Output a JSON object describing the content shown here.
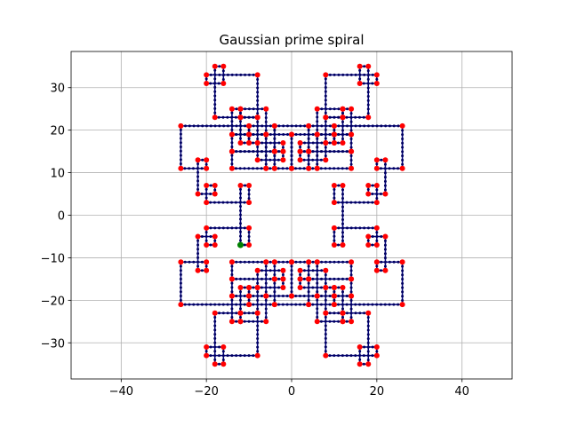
{
  "chart_data": {
    "type": "line",
    "title": "Gaussian prime spiral",
    "x": [
      -12,
      -10,
      -10,
      -20,
      -20,
      -18,
      -18,
      -22,
      -22,
      -20,
      -20,
      -26,
      -26,
      -10,
      -10,
      -14,
      -14,
      -12,
      -12,
      -18,
      -18,
      -16,
      -16,
      -20,
      -20,
      -8,
      -8,
      -12,
      -12,
      -6,
      -6,
      -10,
      -10,
      -4,
      -4,
      -14,
      -14,
      -10,
      -10,
      -12,
      -12,
      -8,
      -8,
      -10,
      -10,
      -6,
      -6,
      -14,
      -14,
      -4,
      -4,
      -6,
      -6,
      0,
      0,
      -4,
      -4,
      -2,
      -2,
      -8,
      -8,
      -2,
      -2,
      -4,
      -4,
      4,
      4,
      2,
      2,
      8,
      8,
      2,
      2,
      4,
      4,
      0,
      0,
      6,
      6,
      4,
      4,
      14,
      14,
      6,
      6,
      10,
      10,
      8,
      8,
      12,
      12,
      10,
      10,
      14,
      14,
      4,
      4,
      10,
      10,
      6,
      6,
      12,
      12,
      8,
      8,
      20,
      20,
      16,
      16,
      18,
      18,
      12,
      12,
      14,
      14,
      10,
      10,
      26,
      26,
      20,
      20,
      22,
      22,
      18,
      18,
      20,
      20,
      10,
      10,
      12,
      12,
      10,
      10,
      20,
      20,
      18,
      18,
      22,
      22,
      20,
      20,
      26,
      26,
      10,
      10,
      14,
      14,
      12,
      12,
      18,
      18,
      16,
      16,
      20,
      20,
      8,
      8,
      12,
      12,
      6,
      6,
      10,
      10,
      4,
      4,
      14,
      14,
      10,
      10,
      12,
      12,
      8,
      8,
      10,
      10,
      6,
      6,
      14,
      14,
      4,
      4,
      6,
      6,
      0,
      0,
      4,
      4,
      2,
      2,
      8,
      8,
      2,
      2,
      4,
      4,
      -4,
      -4,
      -2,
      -2,
      -8,
      -8,
      -2,
      -2,
      -4,
      -4,
      0,
      0,
      -6,
      -6,
      -4,
      -4,
      -14,
      -14,
      -6,
      -6,
      -10,
      -10,
      -8,
      -8,
      -12,
      -12,
      -10,
      -10,
      -14,
      -14,
      -4,
      -4,
      -10,
      -10,
      -6,
      -6,
      -12,
      -12,
      -8,
      -8,
      -20,
      -20,
      -16,
      -16,
      -18,
      -18,
      -12,
      -12,
      -14,
      -14,
      -10,
      -10,
      -26,
      -26,
      -20,
      -20,
      -22,
      -22,
      -18,
      -18,
      -20,
      -20,
      -10,
      -10,
      -12,
      -12
    ],
    "y": [
      -7,
      -7,
      -3,
      -3,
      -7,
      -7,
      -5,
      -5,
      -13,
      -13,
      -11,
      -11,
      -21,
      -21,
      -19,
      -19,
      -25,
      -25,
      -23,
      -23,
      -35,
      -35,
      -31,
      -31,
      -33,
      -33,
      -23,
      -23,
      -25,
      -25,
      -19,
      -19,
      -21,
      -21,
      -15,
      -15,
      -19,
      -19,
      -17,
      -17,
      -23,
      -23,
      -17,
      -17,
      -19,
      -19,
      -11,
      -11,
      -15,
      -15,
      -11,
      -11,
      -19,
      -19,
      -11,
      -11,
      -15,
      -15,
      -13,
      -13,
      -17,
      -17,
      -15,
      -15,
      -21,
      -21,
      -15,
      -15,
      -17,
      -17,
      -13,
      -13,
      -15,
      -15,
      -11,
      -11,
      -19,
      -19,
      -11,
      -11,
      -15,
      -15,
      -11,
      -11,
      -19,
      -19,
      -17,
      -17,
      -23,
      -23,
      -17,
      -17,
      -19,
      -19,
      -15,
      -15,
      -21,
      -21,
      -19,
      -19,
      -25,
      -25,
      -23,
      -23,
      -33,
      -33,
      -31,
      -31,
      -35,
      -35,
      -23,
      -23,
      -25,
      -25,
      -19,
      -19,
      -21,
      -21,
      -11,
      -11,
      -13,
      -13,
      -5,
      -5,
      -7,
      -7,
      -3,
      -3,
      -7,
      -7,
      7,
      7,
      3,
      3,
      7,
      7,
      5,
      5,
      13,
      13,
      11,
      11,
      21,
      21,
      19,
      19,
      25,
      25,
      23,
      23,
      35,
      35,
      31,
      31,
      33,
      33,
      23,
      23,
      25,
      25,
      19,
      19,
      21,
      21,
      15,
      15,
      19,
      19,
      17,
      17,
      23,
      23,
      17,
      17,
      19,
      19,
      11,
      11,
      15,
      15,
      11,
      11,
      19,
      19,
      11,
      11,
      15,
      15,
      13,
      13,
      17,
      17,
      15,
      15,
      21,
      21,
      15,
      15,
      17,
      17,
      13,
      13,
      15,
      15,
      11,
      11,
      19,
      19,
      11,
      11,
      15,
      15,
      11,
      11,
      19,
      19,
      17,
      17,
      23,
      23,
      17,
      17,
      19,
      19,
      15,
      15,
      21,
      21,
      19,
      19,
      25,
      25,
      23,
      23,
      33,
      33,
      31,
      31,
      35,
      35,
      23,
      23,
      25,
      25,
      19,
      19,
      21,
      21,
      11,
      11,
      13,
      13,
      5,
      5,
      7,
      7,
      3,
      3,
      7,
      7,
      -7
    ],
    "line_color": "#000080",
    "point_color": "#000060",
    "prime_color": "#ff0000",
    "start_color": "#008000",
    "xlim": [
      -51.75,
      51.75
    ],
    "ylim": [
      -38.5,
      38.5
    ],
    "xticks": [
      {
        "value": -40,
        "label": "−40"
      },
      {
        "value": -20,
        "label": "−20"
      },
      0,
      20,
      40
    ],
    "yticks": [
      {
        "value": -30,
        "label": "−30"
      },
      {
        "value": -20,
        "label": "−20"
      },
      {
        "value": -10,
        "label": "−10"
      },
      0,
      10,
      20,
      30
    ],
    "grid": true
  }
}
